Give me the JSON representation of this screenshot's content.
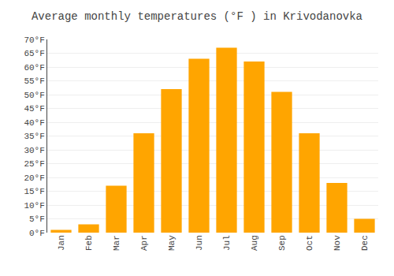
{
  "chart_data": {
    "type": "bar",
    "title": "Average monthly temperatures (°F ) in Krivodanovka",
    "categories": [
      "Jan",
      "Feb",
      "Mar",
      "Apr",
      "May",
      "Jun",
      "Jul",
      "Aug",
      "Sep",
      "Oct",
      "Nov",
      "Dec"
    ],
    "values": [
      1,
      3,
      17,
      36,
      52,
      63,
      67,
      62,
      51,
      36,
      18,
      5
    ],
    "color": "#FFA500",
    "ylim": [
      0,
      70
    ],
    "yticks": [
      {
        "value": 0,
        "label": "0°F"
      },
      {
        "value": 5,
        "label": "5°F"
      },
      {
        "value": 10,
        "label": "10°F"
      },
      {
        "value": 15,
        "label": "15°F"
      },
      {
        "value": 20,
        "label": "20°F"
      },
      {
        "value": 25,
        "label": "25°F"
      },
      {
        "value": 30,
        "label": "30°F"
      },
      {
        "value": 35,
        "label": "35°F"
      },
      {
        "value": 40,
        "label": "40°F"
      },
      {
        "value": 45,
        "label": "45°F"
      },
      {
        "value": 50,
        "label": "50°F"
      },
      {
        "value": 55,
        "label": "55°F"
      },
      {
        "value": 60,
        "label": "60°F"
      },
      {
        "value": 65,
        "label": "65°F"
      },
      {
        "value": 70,
        "label": "70°F"
      }
    ],
    "grid": true
  }
}
